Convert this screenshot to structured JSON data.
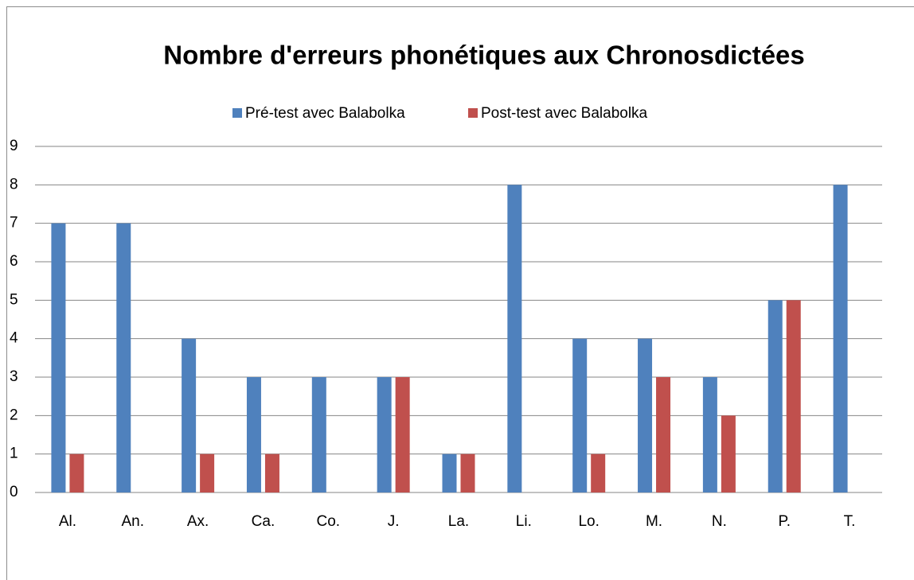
{
  "chart_data": {
    "type": "bar",
    "title": "Nombre d'erreurs phonétiques aux Chronosdictées",
    "categories": [
      "Al.",
      "An.",
      "Ax.",
      "Ca.",
      "Co.",
      "J.",
      "La.",
      "Li.",
      "Lo.",
      "M.",
      "N.",
      "P.",
      "T."
    ],
    "series": [
      {
        "name": "Pré-test avec Balabolka",
        "color": "#4f81bd",
        "values": [
          7,
          7,
          4,
          3,
          3,
          3,
          1,
          8,
          4,
          4,
          3,
          5,
          8
        ]
      },
      {
        "name": "Post-test avec Balabolka",
        "color": "#c0504d",
        "values": [
          1,
          0,
          1,
          1,
          0,
          3,
          1,
          0,
          1,
          3,
          2,
          5,
          0
        ]
      }
    ],
    "ylim": [
      0,
      9
    ],
    "yticks": [
      0,
      1,
      2,
      3,
      4,
      5,
      6,
      7,
      8,
      9
    ],
    "grid": true,
    "legend": "top"
  }
}
